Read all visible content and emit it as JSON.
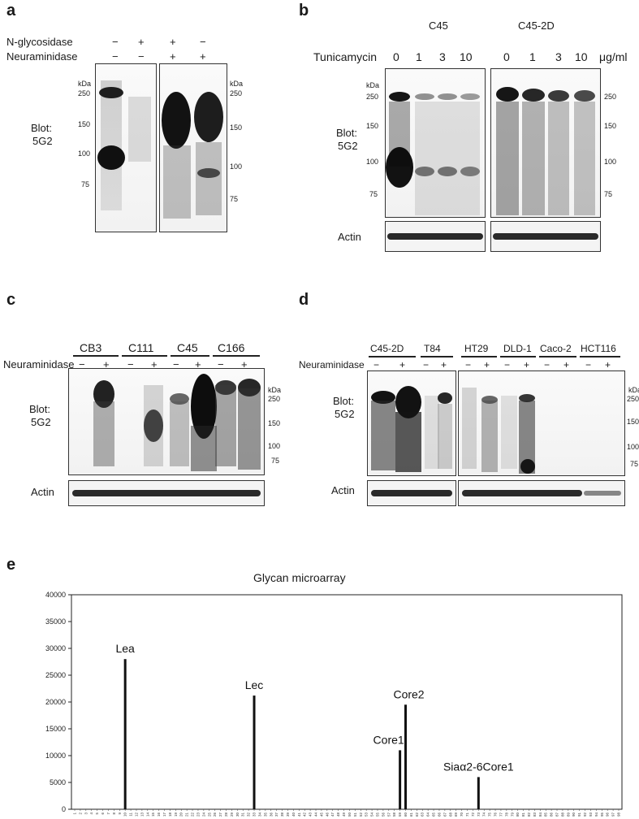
{
  "panels": {
    "a": {
      "letter": "a",
      "row1_label": "N-glycosidase",
      "row2_label": "Neuraminidase",
      "row1_signs": [
        "−",
        "+",
        "+",
        "−"
      ],
      "row2_signs": [
        "−",
        "−",
        "+",
        "+"
      ],
      "kda": "kDa",
      "markers_left": [
        "250",
        "150",
        "100",
        "75"
      ],
      "markers_right": [
        "250",
        "150",
        "100",
        "75"
      ],
      "blot_label_1": "Blot:",
      "blot_label_2": "5G2"
    },
    "b": {
      "letter": "b",
      "group1": "C45",
      "group2": "C45-2D",
      "treatment": "Tunicamycin",
      "doses_1": [
        "0",
        "1",
        "3",
        "10"
      ],
      "doses_2": [
        "0",
        "1",
        "3",
        "10"
      ],
      "unit": "μg/ml",
      "kda": "kDa",
      "markers": [
        "250",
        "150",
        "100",
        "75"
      ],
      "blot_label_1": "Blot:",
      "blot_label_2": "5G2",
      "actin": "Actin"
    },
    "c": {
      "letter": "c",
      "groups": [
        "CB3",
        "C111",
        "C45",
        "C166"
      ],
      "treatment": "Neuraminidase",
      "signs": [
        "−",
        "+",
        "−",
        "+",
        "−",
        "+",
        "−",
        "+"
      ],
      "kda": "kDa",
      "markers": [
        "250",
        "150",
        "100",
        "75"
      ],
      "blot_label_1": "Blot:",
      "blot_label_2": "5G2",
      "actin": "Actin"
    },
    "d": {
      "letter": "d",
      "groups": [
        "C45-2D",
        "T84",
        "HT29",
        "DLD-1",
        "Caco-2",
        "HCT116"
      ],
      "treatment": "Neuraminidase",
      "signs": [
        "−",
        "+",
        "−",
        "+",
        "−",
        "+",
        "−",
        "+",
        "−",
        "+",
        "−",
        "+"
      ],
      "kda": "kDa",
      "markers": [
        "250",
        "150",
        "100",
        "75"
      ],
      "blot_label_1": "Blot:",
      "blot_label_2": "5G2",
      "actin": "Actin"
    },
    "e": {
      "letter": "e"
    }
  },
  "chart_data": {
    "type": "bar",
    "title": "Glycan microarray",
    "xlabel": "",
    "ylabel": "",
    "ylim": [
      0,
      40000
    ],
    "yticks": [
      0,
      5000,
      10000,
      15000,
      20000,
      25000,
      30000,
      35000,
      40000
    ],
    "x_range": [
      1,
      98
    ],
    "bars": [
      {
        "x": 10,
        "value": 28000,
        "label": "Lea"
      },
      {
        "x": 33,
        "value": 21200,
        "label": "Lec"
      },
      {
        "x": 59,
        "value": 11000,
        "label": "Core1"
      },
      {
        "x": 60,
        "value": 19500,
        "label": "Core2"
      },
      {
        "x": 73,
        "value": 6000,
        "label": "Siaα2-6Core1"
      }
    ],
    "grid": false,
    "legend": "none"
  }
}
